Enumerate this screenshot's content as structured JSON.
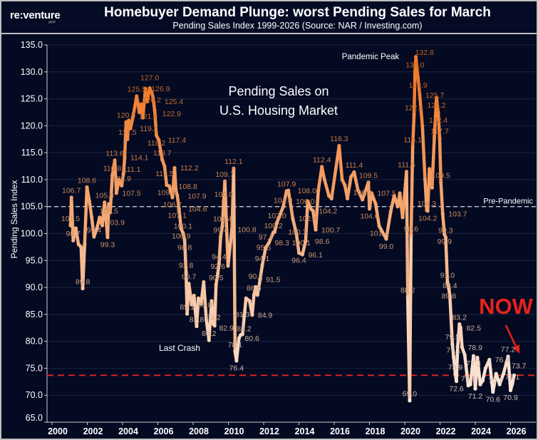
{
  "header": {
    "logo": "re:venture",
    "logo_sub": "APP",
    "title": "Homebuyer Demand Plunge: worst Pending Sales for March",
    "subtitle": "Pending Sales Index 1999-2026 (Source: NAR / Investing.com)"
  },
  "chart_data": {
    "type": "line",
    "title": "Homebuyer Demand Plunge: worst Pending Sales for March",
    "subtitle": "Pending Sales Index 1999-2026 (Source: NAR / Investing.com)",
    "xlabel": "",
    "ylabel": "Pending Sales Index",
    "xlim": [
      2000,
      2027.5
    ],
    "ylim": [
      65,
      135
    ],
    "x_ticks": [
      2000,
      2002,
      2004,
      2006,
      2008,
      2010,
      2012,
      2014,
      2016,
      2018,
      2020,
      2022,
      2024,
      2026
    ],
    "y_ticks": [
      65,
      70,
      75,
      80,
      85,
      90,
      95,
      100,
      105,
      110,
      115,
      120,
      125,
      130,
      135
    ],
    "grid": "horizontal",
    "colors": {
      "background": "#040a22",
      "low": "#fbe9dc",
      "high": "#f07a2a",
      "pre_pandemic_line": "#dddddd",
      "now_line": "#e02020",
      "now_text": "#e8221c"
    },
    "reference_lines": [
      {
        "value": 105.0,
        "label": "Pre-Pandemic",
        "style": "dashed-white"
      },
      {
        "value": 73.7,
        "label": "",
        "style": "dashed-red"
      }
    ],
    "annotations": {
      "center_line1": "Pending Sales on",
      "center_line2": "U.S. Housing Market",
      "pandemic_peak": "Pandemic Peak",
      "last_crash": "Last Crash",
      "now": "NOW"
    },
    "points": [
      {
        "x": 2001.05,
        "y": 101.5,
        "label": true
      },
      {
        "x": 2001.1,
        "y": 106.7,
        "label": true
      },
      {
        "x": 2001.2,
        "y": 98.7,
        "label": true
      },
      {
        "x": 2001.35,
        "y": 101.0
      },
      {
        "x": 2001.5,
        "y": 98.0
      },
      {
        "x": 2001.65,
        "y": 97.5
      },
      {
        "x": 2001.74,
        "y": 89.8,
        "label": true
      },
      {
        "x": 2001.85,
        "y": 98.0
      },
      {
        "x": 2001.98,
        "y": 108.6,
        "label": true
      },
      {
        "x": 2002.12,
        "y": 106.0
      },
      {
        "x": 2002.25,
        "y": 103.0
      },
      {
        "x": 2002.38,
        "y": 99.4,
        "label": true
      },
      {
        "x": 2002.55,
        "y": 101.0
      },
      {
        "x": 2002.7,
        "y": 103.0
      },
      {
        "x": 2002.85,
        "y": 101.5
      },
      {
        "x": 2002.98,
        "y": 105.8,
        "label": true
      },
      {
        "x": 2003.15,
        "y": 99.3,
        "label": true
      },
      {
        "x": 2003.22,
        "y": 105.5,
        "label": true
      },
      {
        "x": 2003.3,
        "y": 103.9,
        "label": true
      },
      {
        "x": 2003.42,
        "y": 110.8,
        "label": true
      },
      {
        "x": 2003.56,
        "y": 113.6,
        "label": true
      },
      {
        "x": 2003.65,
        "y": 107.5,
        "label": true
      },
      {
        "x": 2003.8,
        "y": 110.0
      },
      {
        "x": 2003.95,
        "y": 108.9,
        "label": true
      },
      {
        "x": 2004.05,
        "y": 111.1,
        "label": true
      },
      {
        "x": 2004.12,
        "y": 114.1,
        "label": true
      },
      {
        "x": 2004.2,
        "y": 120.7,
        "label": true
      },
      {
        "x": 2004.28,
        "y": 117.5,
        "label": true
      },
      {
        "x": 2004.35,
        "y": 121.0
      },
      {
        "x": 2004.45,
        "y": 119.5,
        "label": true
      },
      {
        "x": 2004.6,
        "y": 121.8,
        "label": true
      },
      {
        "x": 2004.8,
        "y": 125.5,
        "label": true
      },
      {
        "x": 2004.95,
        "y": 122.5
      },
      {
        "x": 2005.05,
        "y": 124.0
      },
      {
        "x": 2005.15,
        "y": 121.5
      },
      {
        "x": 2005.3,
        "y": 126.9,
        "label": true
      },
      {
        "x": 2005.4,
        "y": 124.5
      },
      {
        "x": 2005.54,
        "y": 127.0,
        "label": true
      },
      {
        "x": 2005.65,
        "y": 126.2,
        "label": true
      },
      {
        "x": 2005.72,
        "y": 125.4,
        "label": true
      },
      {
        "x": 2005.82,
        "y": 122.9,
        "label": true
      },
      {
        "x": 2005.92,
        "y": 118.2,
        "label": true
      },
      {
        "x": 2006.05,
        "y": 117.4,
        "label": true
      },
      {
        "x": 2006.25,
        "y": 113.7,
        "label": true
      },
      {
        "x": 2006.38,
        "y": 112.5,
        "label": true
      },
      {
        "x": 2006.5,
        "y": 109.0,
        "label": true
      },
      {
        "x": 2006.65,
        "y": 108.8,
        "label": true
      },
      {
        "x": 2006.83,
        "y": 106.7,
        "label": true
      },
      {
        "x": 2006.95,
        "y": 112.2,
        "label": true
      },
      {
        "x": 2007.03,
        "y": 107.9,
        "label": true
      },
      {
        "x": 2007.1,
        "y": 107.1,
        "label": true
      },
      {
        "x": 2007.2,
        "y": 104.6,
        "label": true
      },
      {
        "x": 2007.32,
        "y": 100.9,
        "label": true
      },
      {
        "x": 2007.43,
        "y": 100.1,
        "label": true
      },
      {
        "x": 2007.52,
        "y": 98.8,
        "label": true
      },
      {
        "x": 2007.6,
        "y": 92.8,
        "label": true
      },
      {
        "x": 2007.66,
        "y": 85.1,
        "label": true
      },
      {
        "x": 2007.76,
        "y": 90.7,
        "label": true
      },
      {
        "x": 2007.92,
        "y": 86.8,
        "label": true
      },
      {
        "x": 2008.05,
        "y": 88.5
      },
      {
        "x": 2008.2,
        "y": 82.8,
        "label": true
      },
      {
        "x": 2008.3,
        "y": 88.0
      },
      {
        "x": 2008.45,
        "y": 87.0
      },
      {
        "x": 2008.6,
        "y": 91.0
      },
      {
        "x": 2008.75,
        "y": 84.0
      },
      {
        "x": 2008.9,
        "y": 80.2,
        "label": true
      },
      {
        "x": 2009.05,
        "y": 87.5
      },
      {
        "x": 2009.15,
        "y": 83.2,
        "label": true
      },
      {
        "x": 2009.22,
        "y": 82.9,
        "label": true
      },
      {
        "x": 2009.3,
        "y": 90.5,
        "label": true
      },
      {
        "x": 2009.4,
        "y": 92.6,
        "label": true
      },
      {
        "x": 2009.47,
        "y": 94.4,
        "label": true
      },
      {
        "x": 2009.56,
        "y": 99.4,
        "label": true
      },
      {
        "x": 2009.66,
        "y": 101.4,
        "label": true
      },
      {
        "x": 2009.73,
        "y": 106.0,
        "label": true
      },
      {
        "x": 2009.8,
        "y": 109.7,
        "label": true
      },
      {
        "x": 2009.98,
        "y": 94.0
      },
      {
        "x": 2010.2,
        "y": 100.8,
        "label": true
      },
      {
        "x": 2010.3,
        "y": 112.1,
        "label": true
      },
      {
        "x": 2010.38,
        "y": 78.1,
        "label": true
      },
      {
        "x": 2010.46,
        "y": 76.4,
        "label": true
      },
      {
        "x": 2010.6,
        "y": 80.6,
        "label": true
      },
      {
        "x": 2010.7,
        "y": 81.2,
        "label": true
      },
      {
        "x": 2010.8,
        "y": 81.3,
        "label": true
      },
      {
        "x": 2011.0,
        "y": 88.0
      },
      {
        "x": 2011.2,
        "y": 87.5
      },
      {
        "x": 2011.35,
        "y": 84.9,
        "label": true
      },
      {
        "x": 2011.45,
        "y": 88.6,
        "label": true
      },
      {
        "x": 2011.55,
        "y": 90.1,
        "label": true
      },
      {
        "x": 2011.65,
        "y": 88.6
      },
      {
        "x": 2011.8,
        "y": 91.5,
        "label": true
      },
      {
        "x": 2011.92,
        "y": 94.1,
        "label": true
      },
      {
        "x": 2012.0,
        "y": 95.5,
        "label": true
      },
      {
        "x": 2012.12,
        "y": 97.4,
        "label": true
      },
      {
        "x": 2012.3,
        "y": 98.3,
        "label": true
      },
      {
        "x": 2012.55,
        "y": 100.2,
        "label": true
      },
      {
        "x": 2012.62,
        "y": 100.3,
        "label": true
      },
      {
        "x": 2012.75,
        "y": 102.0,
        "label": true
      },
      {
        "x": 2013.1,
        "y": 104.9,
        "label": true
      },
      {
        "x": 2013.3,
        "y": 107.9,
        "label": true
      },
      {
        "x": 2013.4,
        "y": 108.0,
        "label": true
      },
      {
        "x": 2013.5,
        "y": 106.0,
        "label": true
      },
      {
        "x": 2013.65,
        "y": 102.8,
        "label": true
      },
      {
        "x": 2013.85,
        "y": 100.1,
        "label": true
      },
      {
        "x": 2014.0,
        "y": 96.4,
        "label": true
      },
      {
        "x": 2014.2,
        "y": 96.1,
        "label": true
      },
      {
        "x": 2014.38,
        "y": 98.6,
        "label": true
      },
      {
        "x": 2014.5,
        "y": 106.0
      },
      {
        "x": 2014.7,
        "y": 104.5
      },
      {
        "x": 2014.8,
        "y": 104.2,
        "label": true
      },
      {
        "x": 2014.95,
        "y": 100.7,
        "label": true
      },
      {
        "x": 2015.1,
        "y": 108.0
      },
      {
        "x": 2015.3,
        "y": 112.4,
        "label": true
      },
      {
        "x": 2015.45,
        "y": 110.0
      },
      {
        "x": 2015.7,
        "y": 107.0
      },
      {
        "x": 2015.85,
        "y": 106.5
      },
      {
        "x": 2016.28,
        "y": 116.3,
        "label": true
      },
      {
        "x": 2016.45,
        "y": 110.0
      },
      {
        "x": 2016.6,
        "y": 109.0
      },
      {
        "x": 2016.75,
        "y": 106.5
      },
      {
        "x": 2016.95,
        "y": 110.5
      },
      {
        "x": 2017.13,
        "y": 111.4,
        "label": true
      },
      {
        "x": 2017.35,
        "y": 108.0
      },
      {
        "x": 2017.6,
        "y": 106.3,
        "label": true
      },
      {
        "x": 2017.94,
        "y": 109.5,
        "label": true
      },
      {
        "x": 2018.0,
        "y": 104.6,
        "label": true
      },
      {
        "x": 2018.12,
        "y": 107.5,
        "label": true
      },
      {
        "x": 2018.35,
        "y": 105.5
      },
      {
        "x": 2018.55,
        "y": 101.4,
        "label": true
      },
      {
        "x": 2018.95,
        "y": 99.0,
        "label": true
      },
      {
        "x": 2019.2,
        "y": 104.0
      },
      {
        "x": 2019.4,
        "y": 107.0
      },
      {
        "x": 2019.6,
        "y": 105.0
      },
      {
        "x": 2019.72,
        "y": 107.5
      },
      {
        "x": 2019.88,
        "y": 103.0
      },
      {
        "x": 2020.1,
        "y": 111.5,
        "label": true
      },
      {
        "x": 2020.17,
        "y": 88.2,
        "label": true
      },
      {
        "x": 2020.28,
        "y": 69.0,
        "label": true
      },
      {
        "x": 2020.36,
        "y": 99.6,
        "label": true
      },
      {
        "x": 2020.45,
        "y": 116.1,
        "label": true
      },
      {
        "x": 2020.53,
        "y": 122.1,
        "label": true
      },
      {
        "x": 2020.58,
        "y": 130.0,
        "label": true
      },
      {
        "x": 2020.63,
        "y": 132.8,
        "label": true
      },
      {
        "x": 2020.75,
        "y": 128.9,
        "label": true
      },
      {
        "x": 2020.85,
        "y": 125.7,
        "label": true
      },
      {
        "x": 2021.0,
        "y": 120.0
      },
      {
        "x": 2021.15,
        "y": 110.0
      },
      {
        "x": 2021.25,
        "y": 104.3,
        "label": true
      },
      {
        "x": 2021.3,
        "y": 104.2,
        "label": true
      },
      {
        "x": 2021.4,
        "y": 112.0
      },
      {
        "x": 2021.55,
        "y": 108.5
      },
      {
        "x": 2021.68,
        "y": 118.0
      },
      {
        "x": 2021.8,
        "y": 125.2,
        "label": true
      },
      {
        "x": 2021.9,
        "y": 122.4,
        "label": true
      },
      {
        "x": 2021.98,
        "y": 117.7,
        "label": true
      },
      {
        "x": 2022.05,
        "y": 109.5,
        "label": true
      },
      {
        "x": 2022.15,
        "y": 103.7,
        "label": true
      },
      {
        "x": 2022.25,
        "y": 99.9,
        "label": true
      },
      {
        "x": 2022.32,
        "y": 99.3,
        "label": true
      },
      {
        "x": 2022.42,
        "y": 91.0,
        "label": true
      },
      {
        "x": 2022.5,
        "y": 89.8,
        "label": true
      },
      {
        "x": 2022.56,
        "y": 88.4,
        "label": true
      },
      {
        "x": 2022.7,
        "y": 79.5,
        "label": true
      },
      {
        "x": 2022.77,
        "y": 77.1,
        "label": true
      },
      {
        "x": 2022.87,
        "y": 73.9,
        "label": true
      },
      {
        "x": 2022.93,
        "y": 72.6,
        "label": true
      },
      {
        "x": 2023.0,
        "y": 79.0
      },
      {
        "x": 2023.1,
        "y": 83.2,
        "label": true
      },
      {
        "x": 2023.17,
        "y": 82.5,
        "label": true
      },
      {
        "x": 2023.25,
        "y": 78.9,
        "label": true
      },
      {
        "x": 2023.4,
        "y": 77.5
      },
      {
        "x": 2023.6,
        "y": 71.8,
        "label": true
      },
      {
        "x": 2023.72,
        "y": 72.0
      },
      {
        "x": 2023.9,
        "y": 77.3,
        "label": true
      },
      {
        "x": 2024.0,
        "y": 71.2,
        "label": true
      },
      {
        "x": 2024.12,
        "y": 77.0
      },
      {
        "x": 2024.28,
        "y": 72.0
      },
      {
        "x": 2024.42,
        "y": 72.7,
        "label": true
      },
      {
        "x": 2024.58,
        "y": 75.0
      },
      {
        "x": 2024.8,
        "y": 76.6,
        "label": true
      },
      {
        "x": 2025.0,
        "y": 70.6,
        "label": true
      },
      {
        "x": 2025.18,
        "y": 74.0
      },
      {
        "x": 2025.38,
        "y": 72.0
      },
      {
        "x": 2025.6,
        "y": 74.0
      },
      {
        "x": 2025.86,
        "y": 77.2,
        "label": true
      },
      {
        "x": 2026.0,
        "y": 70.9,
        "label": true
      },
      {
        "x": 2026.1,
        "y": 72.1,
        "label": true
      },
      {
        "x": 2026.2,
        "y": 73.7,
        "label": true
      }
    ]
  }
}
